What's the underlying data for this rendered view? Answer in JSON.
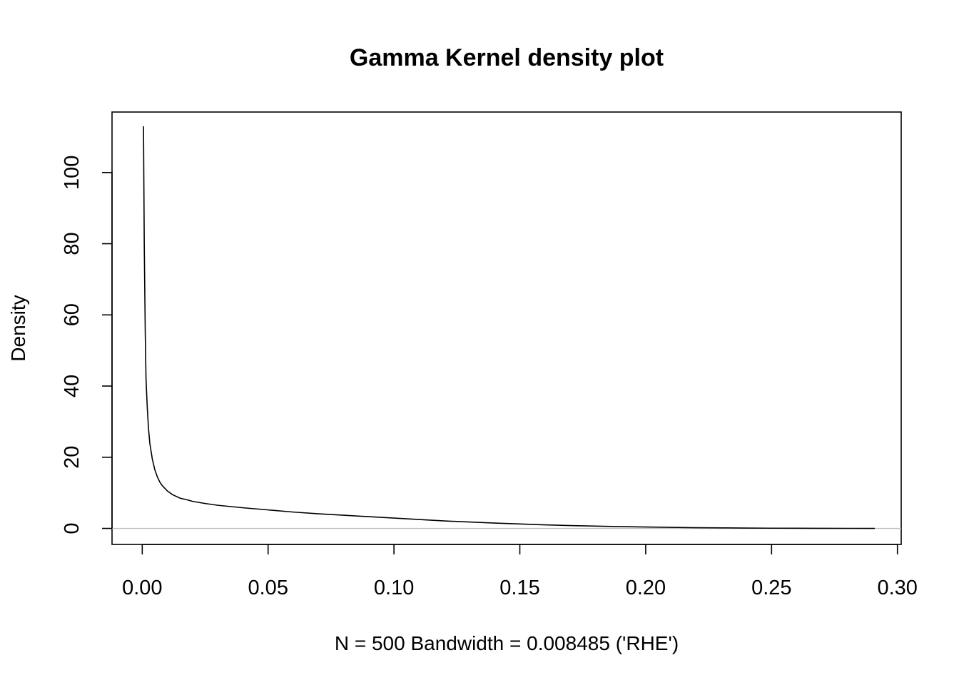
{
  "chart_data": {
    "type": "line",
    "title": "Gamma Kernel density plot",
    "xlabel": "N = 500   Bandwidth = 0.008485 ('RHE')",
    "ylabel": "Density",
    "xlim": [
      -0.012,
      0.3015
    ],
    "ylim": [
      -4.5,
      117
    ],
    "x_ticks": [
      "0.00",
      "0.05",
      "0.10",
      "0.15",
      "0.20",
      "0.25",
      "0.30"
    ],
    "x_tick_values": [
      0,
      0.05,
      0.1,
      0.15,
      0.2,
      0.25,
      0.3
    ],
    "y_ticks": [
      "0",
      "20",
      "40",
      "60",
      "80",
      "100"
    ],
    "y_tick_values": [
      0,
      20,
      40,
      60,
      80,
      100
    ],
    "reference_line": {
      "y": 0,
      "color": "#bebebe"
    },
    "series": [
      {
        "color": "#000000",
        "x": [
          0.0005,
          0.0008,
          0.0012,
          0.0015,
          0.002,
          0.0025,
          0.003,
          0.004,
          0.005,
          0.006,
          0.007,
          0.008,
          0.01,
          0.012,
          0.015,
          0.018,
          0.02,
          0.025,
          0.03,
          0.04,
          0.05,
          0.06,
          0.07,
          0.08,
          0.09,
          0.1,
          0.11,
          0.12,
          0.13,
          0.14,
          0.15,
          0.16,
          0.17,
          0.18,
          0.19,
          0.2,
          0.21,
          0.22,
          0.23,
          0.24,
          0.25,
          0.26,
          0.27,
          0.28,
          0.291
        ],
        "y": [
          113,
          80,
          55,
          42,
          34,
          28,
          24,
          19.5,
          16.5,
          14.5,
          13,
          12,
          10.5,
          9.5,
          8.5,
          8,
          7.6,
          7,
          6.5,
          5.8,
          5.2,
          4.6,
          4.1,
          3.7,
          3.3,
          2.9,
          2.5,
          2.1,
          1.8,
          1.5,
          1.25,
          1.0,
          0.8,
          0.65,
          0.5,
          0.4,
          0.3,
          0.2,
          0.15,
          0.1,
          0.06,
          0.04,
          0.02,
          0.01,
          0.0
        ]
      }
    ]
  }
}
